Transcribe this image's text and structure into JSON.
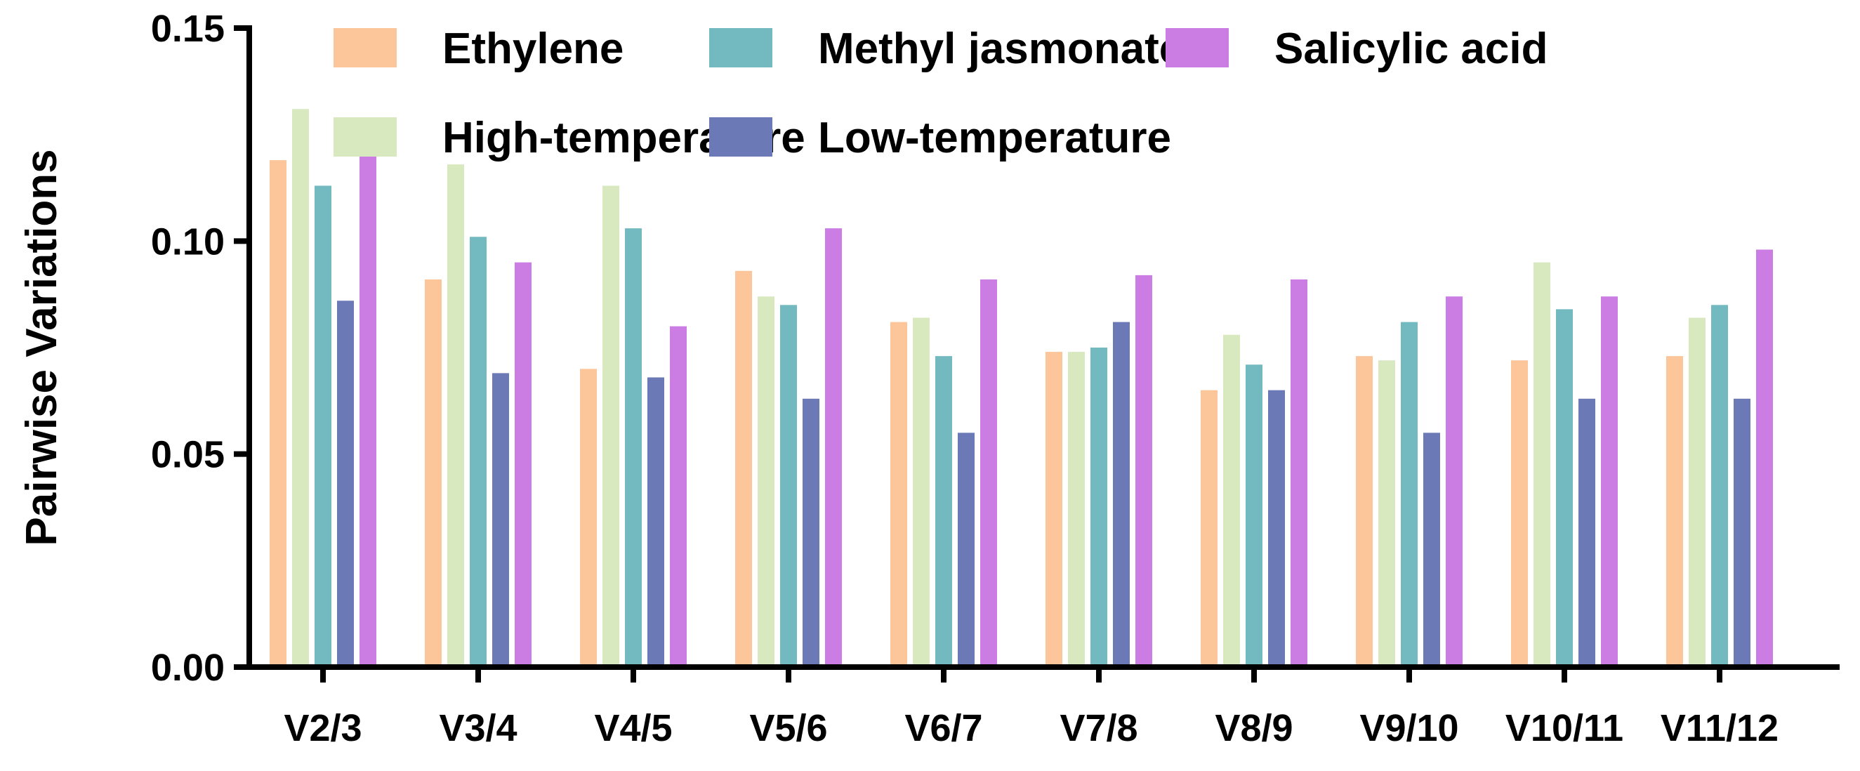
{
  "chart_data": {
    "type": "bar",
    "title": "",
    "xlabel": "",
    "ylabel": "Pairwise Variations",
    "ylim": [
      0,
      0.15
    ],
    "yticks": [
      "0.00",
      "0.05",
      "0.10",
      "0.15"
    ],
    "ytick_values": [
      0,
      0.05,
      0.1,
      0.15
    ],
    "grid": false,
    "legend_position": "top",
    "categories": [
      "V2/3",
      "V3/4",
      "V4/5",
      "V5/6",
      "V6/7",
      "V7/8",
      "V8/9",
      "V9/10",
      "V10/11",
      "V11/12"
    ],
    "series": [
      {
        "name": "Ethylene",
        "color": "#FCC59A",
        "values": [
          0.119,
          0.091,
          0.07,
          0.093,
          0.081,
          0.074,
          0.065,
          0.073,
          0.072,
          0.073
        ]
      },
      {
        "name": "High-temperature",
        "color": "#D8E8BF",
        "values": [
          0.131,
          0.118,
          0.113,
          0.087,
          0.082,
          0.074,
          0.078,
          0.072,
          0.095,
          0.082
        ]
      },
      {
        "name": "Methyl jasmonate",
        "color": "#72BAC0",
        "values": [
          0.113,
          0.101,
          0.103,
          0.085,
          0.073,
          0.075,
          0.071,
          0.081,
          0.084,
          0.085
        ]
      },
      {
        "name": "Low-temperature",
        "color": "#6C79B7",
        "values": [
          0.086,
          0.069,
          0.068,
          0.063,
          0.055,
          0.081,
          0.065,
          0.055,
          0.063,
          0.063
        ]
      },
      {
        "name": "Salicylic acid",
        "color": "#CB7DE4",
        "values": [
          0.126,
          0.095,
          0.08,
          0.103,
          0.091,
          0.092,
          0.091,
          0.087,
          0.087,
          0.098
        ]
      }
    ],
    "legend_order": [
      [
        "Ethylene",
        "Methyl jasmonate",
        "Salicylic acid"
      ],
      [
        "High-temperature",
        "Low-temperature"
      ]
    ]
  }
}
